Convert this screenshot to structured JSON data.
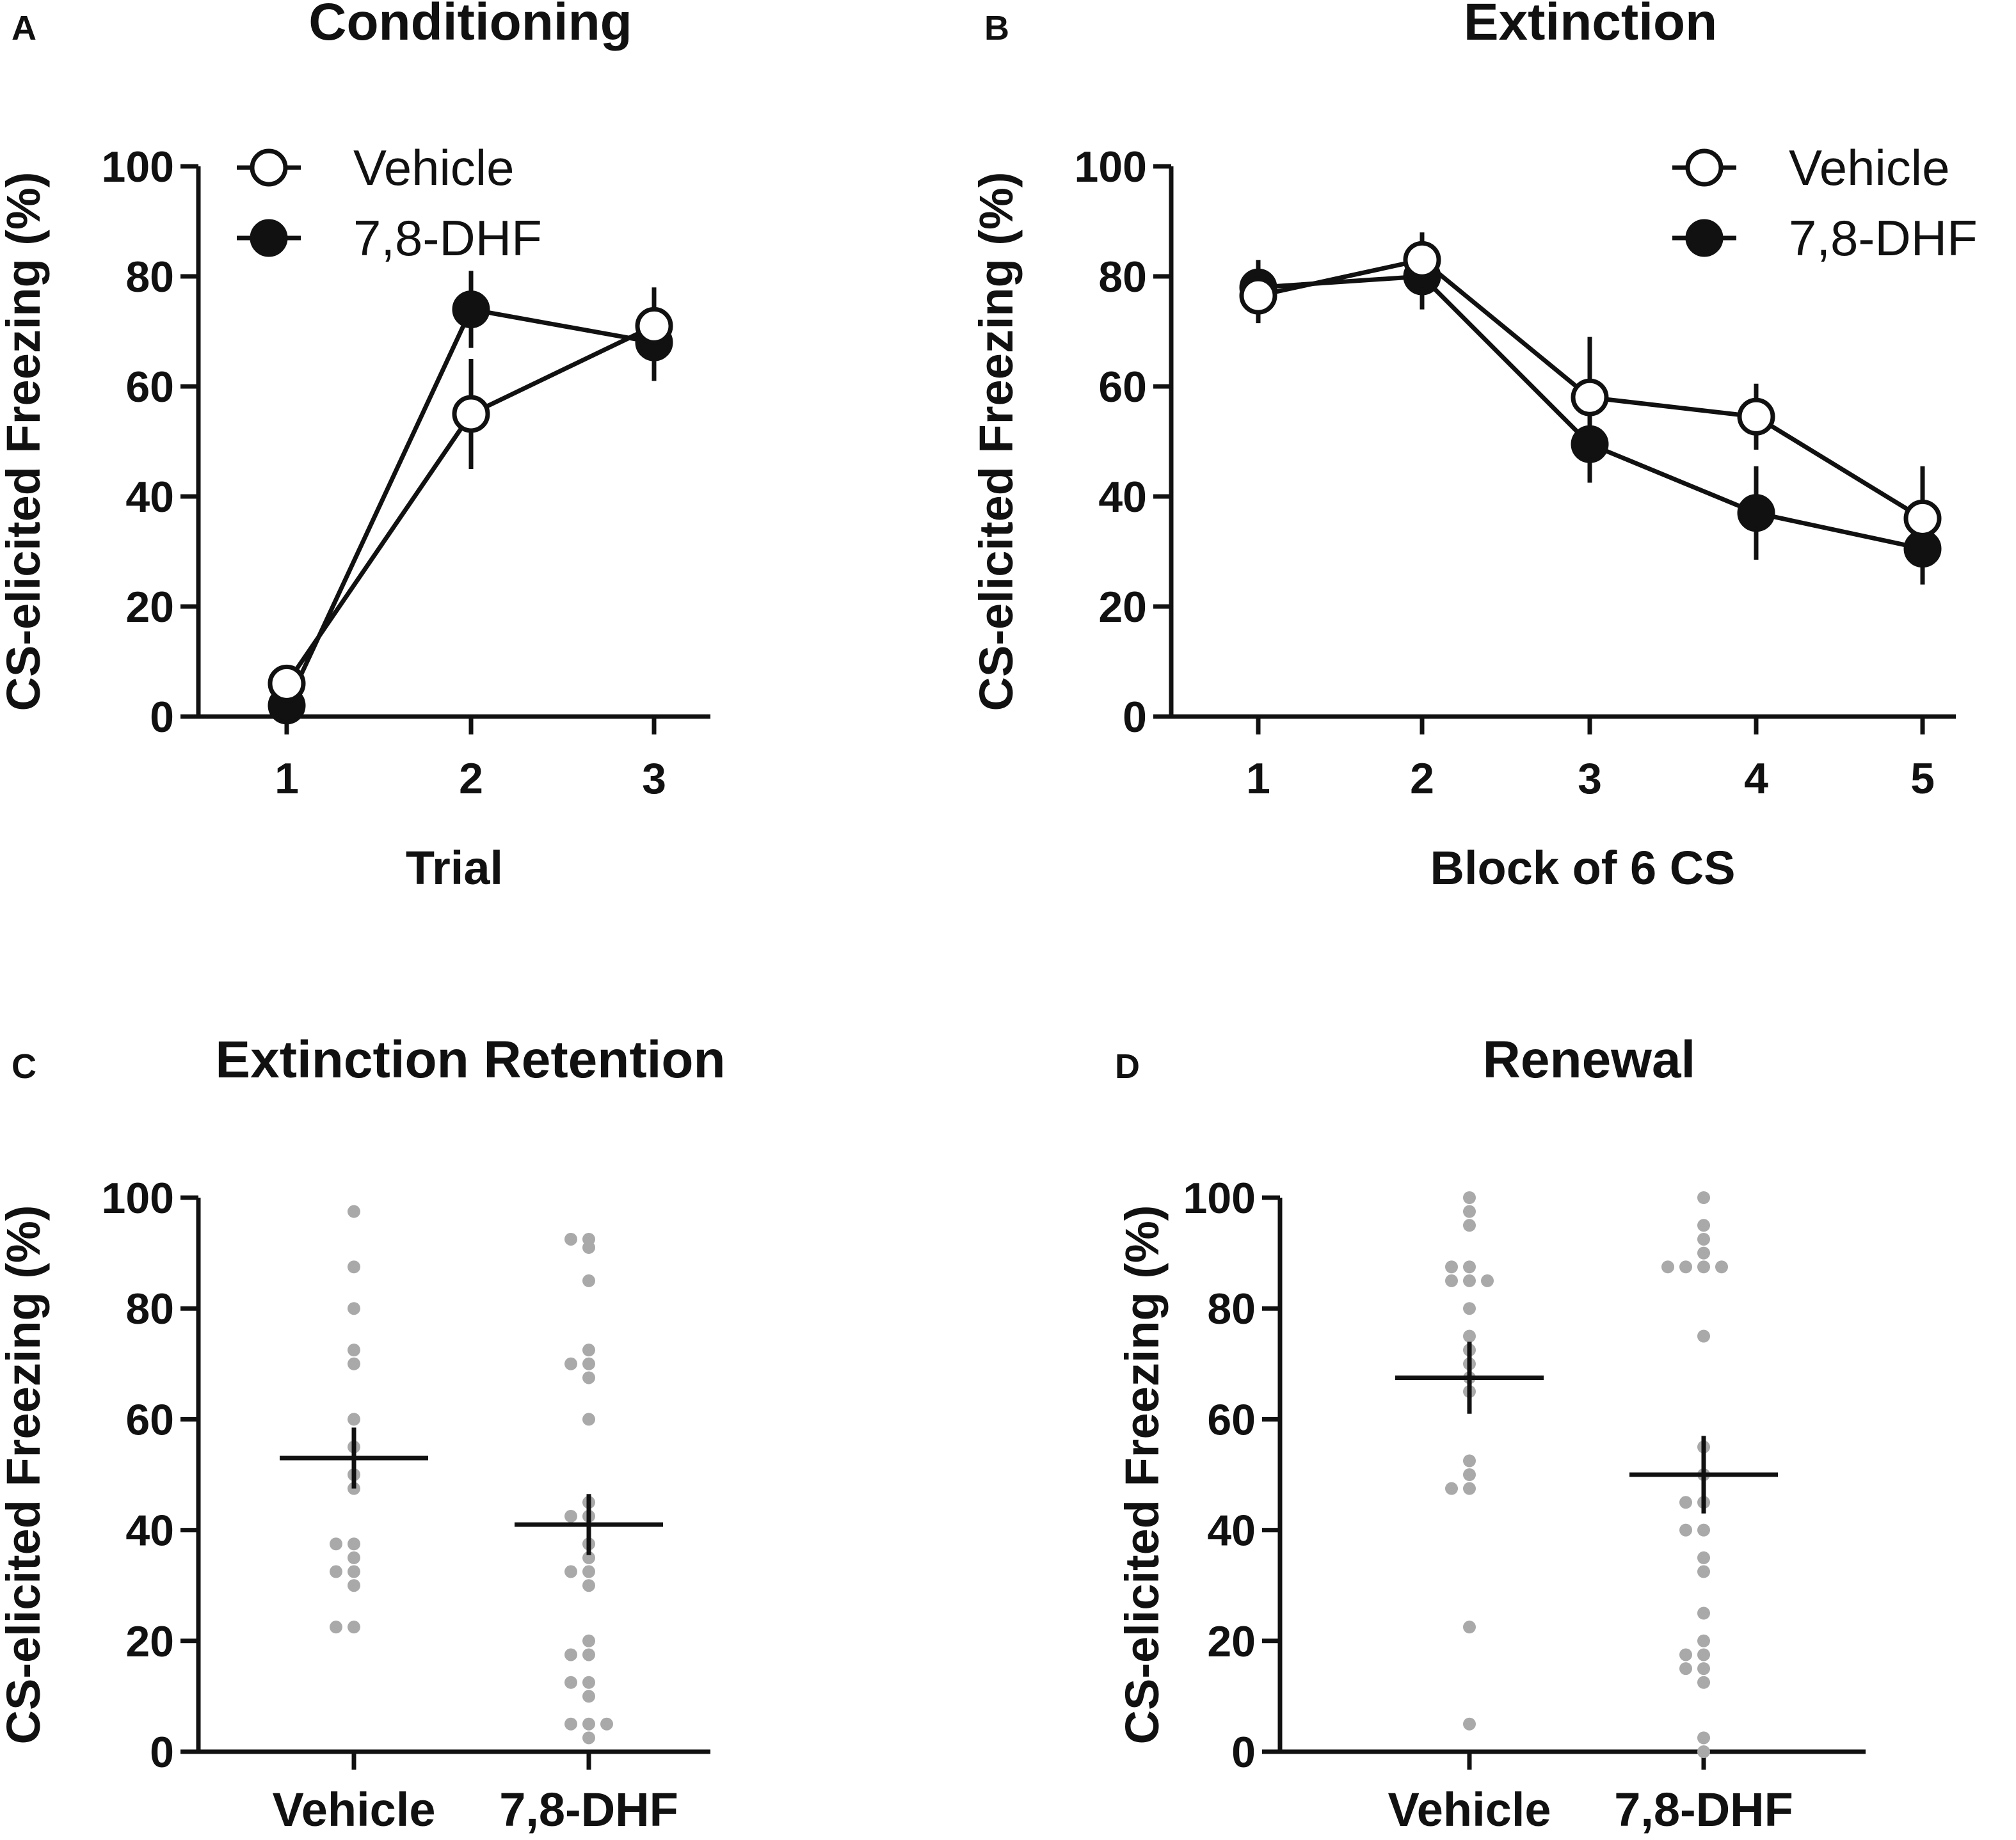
{
  "chart_data": [
    {
      "id": "A",
      "type": "line",
      "panel_letter": "A",
      "title": "Conditioning",
      "xlabel": "Trial",
      "ylabel": "CS-elicited Freezing (%)",
      "categories": [
        "1",
        "2",
        "3"
      ],
      "yticks": [
        0,
        20,
        40,
        60,
        80,
        100
      ],
      "ylim": [
        0,
        100
      ],
      "legend_position": "top-left",
      "series": [
        {
          "name": "Vehicle",
          "marker": "open-circle",
          "values": [
            6,
            55,
            71
          ],
          "sem": [
            1,
            10,
            7
          ]
        },
        {
          "name": "7,8-DHF",
          "marker": "filled-circle",
          "values": [
            2,
            74,
            68
          ],
          "sem": [
            1,
            7,
            7
          ]
        }
      ]
    },
    {
      "id": "B",
      "type": "line",
      "panel_letter": "B",
      "title": "Extinction",
      "xlabel": "Block of 6 CS",
      "ylabel": "CS-elicited Freezing (%)",
      "categories": [
        "1",
        "2",
        "3",
        "4",
        "5"
      ],
      "yticks": [
        0,
        20,
        40,
        60,
        80,
        100
      ],
      "ylim": [
        0,
        100
      ],
      "legend_position": "top-right",
      "series": [
        {
          "name": "Vehicle",
          "marker": "open-circle",
          "values": [
            76.5,
            83,
            58,
            54.5,
            36
          ],
          "sem": [
            5,
            5,
            11,
            6,
            9.5
          ]
        },
        {
          "name": "7,8-DHF",
          "marker": "filled-circle",
          "values": [
            78,
            80,
            49.5,
            37,
            30.5
          ],
          "sem": [
            5,
            6,
            7,
            8.5,
            6.5
          ]
        }
      ]
    },
    {
      "id": "C",
      "type": "scatter",
      "panel_letter": "C",
      "title": "Extinction Retention",
      "xlabel": "",
      "ylabel": "CS-elicited Freezing (%)",
      "categories": [
        "Vehicle",
        "7,8-DHF"
      ],
      "yticks": [
        0,
        20,
        40,
        60,
        80,
        100
      ],
      "ylim": [
        0,
        100
      ],
      "groups": [
        {
          "name": "Vehicle",
          "mean": 53,
          "sem": 5.5,
          "points": [
            97.5,
            87.5,
            80,
            72.5,
            70,
            60,
            55,
            50,
            47.5,
            37.5,
            37.5,
            35,
            32.5,
            32.5,
            30,
            22.5,
            22.5
          ]
        },
        {
          "name": "7,8-DHF",
          "mean": 41,
          "sem": 5.5,
          "points": [
            92.5,
            92.5,
            91,
            85,
            72.5,
            70,
            70,
            67.5,
            60,
            45,
            42.5,
            42.5,
            37.5,
            35,
            32.5,
            32.5,
            30,
            20,
            17.5,
            17.5,
            12.5,
            12.5,
            10,
            5,
            5,
            5,
            2.5
          ]
        }
      ]
    },
    {
      "id": "D",
      "type": "scatter",
      "panel_letter": "D",
      "title": "Renewal",
      "xlabel": "",
      "ylabel": "CS-elicited Freezing (%)",
      "categories": [
        "Vehicle",
        "7,8-DHF"
      ],
      "yticks": [
        0,
        20,
        40,
        60,
        80,
        100
      ],
      "ylim": [
        0,
        100
      ],
      "groups": [
        {
          "name": "Vehicle",
          "mean": 67.5,
          "sem": 6.5,
          "points": [
            100,
            97.5,
            95,
            87.5,
            87.5,
            85,
            85,
            85,
            80,
            75,
            72.5,
            70,
            67.5,
            65,
            52.5,
            50,
            47.5,
            47.5,
            22.5,
            5
          ]
        },
        {
          "name": "7,8-DHF",
          "mean": 50,
          "sem": 7,
          "points": [
            100,
            95,
            92.5,
            90,
            87.5,
            87.5,
            87.5,
            87.5,
            75,
            55,
            50,
            45,
            45,
            40,
            40,
            35,
            32.5,
            25,
            20,
            17.5,
            17.5,
            15,
            15,
            12.5,
            2.5,
            0
          ]
        }
      ]
    }
  ]
}
